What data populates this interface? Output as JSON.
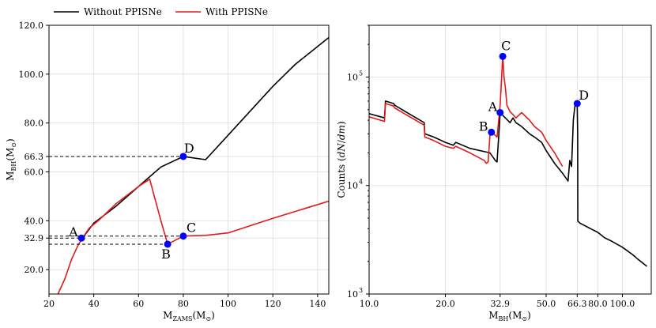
{
  "legend": {
    "without_label": "Without PPISNe",
    "with_label": "With PPISNe",
    "without_color": "#000000",
    "with_color": "#e31a1c"
  },
  "chart_data": [
    {
      "type": "line",
      "id": "left",
      "xlabel": "M_ZAMS(M_⊙)",
      "ylabel": "M_BH(M_⊙)",
      "xlim": [
        20,
        145
      ],
      "ylim": [
        10,
        120
      ],
      "x_ticks": [
        20,
        40,
        60,
        80,
        100,
        120,
        140
      ],
      "x_tick_labels": [
        "20",
        "40",
        "60",
        "80",
        "100",
        "120",
        "140"
      ],
      "y_ticks": [
        20,
        32.9,
        40,
        60,
        66.3,
        80,
        100,
        120
      ],
      "y_tick_labels": [
        "20.0",
        "32.9",
        "40.0",
        "60.0",
        "66.3",
        "80.0",
        "100.0",
        "120.0"
      ],
      "grid": true,
      "series": [
        {
          "name": "Without PPISNe",
          "color": "#000000",
          "x": [
            35,
            40,
            50,
            60,
            65,
            70,
            80,
            90,
            100,
            110,
            120,
            130,
            145
          ],
          "y": [
            32.9,
            39,
            46,
            54,
            58,
            62,
            66.3,
            65,
            75,
            85,
            95,
            104,
            115
          ]
        },
        {
          "name": "With PPISNe",
          "color": "#e31a1c",
          "x": [
            24,
            27,
            30,
            33,
            35,
            38,
            42,
            50,
            60,
            65,
            70,
            73,
            80,
            90,
            100,
            120,
            145
          ],
          "y": [
            10,
            16,
            24,
            30,
            33,
            37,
            40,
            47,
            54,
            57,
            40,
            30.4,
            33.7,
            34,
            35,
            41,
            48
          ]
        }
      ],
      "points": [
        {
          "label": "A",
          "x": 34.5,
          "y": 32.9
        },
        {
          "label": "B",
          "x": 73,
          "y": 30.4
        },
        {
          "label": "C",
          "x": 80,
          "y": 33.7
        },
        {
          "label": "D",
          "x": 80,
          "y": 66.3
        }
      ]
    },
    {
      "type": "line",
      "id": "right",
      "xscale": "log",
      "yscale": "log",
      "xlabel": "M_BH(M_⊙)",
      "ylabel": "Counts (dN/dm)",
      "xlim": [
        10,
        130
      ],
      "ylim": [
        1000,
        300000
      ],
      "x_ticks": [
        10,
        20,
        32.9,
        50,
        66.3,
        80,
        100
      ],
      "x_tick_labels": [
        "10.0",
        "20.0",
        "32.9",
        "50.0",
        "66.3",
        "80.0",
        "100.0"
      ],
      "y_ticks": [
        1000,
        10000,
        100000
      ],
      "y_tick_labels": [
        "10",
        "10",
        "10"
      ],
      "y_tick_exponents": [
        "3",
        "4",
        "5"
      ],
      "grid": true,
      "series": [
        {
          "name": "Without PPISNe",
          "color": "#000000",
          "x": [
            10,
            11.5,
            11.6,
            12.5,
            12.6,
            16.5,
            16.6,
            18,
            20,
            21.5,
            22,
            25,
            30,
            31.5,
            32,
            32.9,
            33.5,
            36,
            37,
            38,
            40,
            43,
            45,
            48,
            50,
            54,
            58,
            61,
            62,
            63,
            64,
            65,
            66,
            66.3,
            66.6,
            66.7,
            68,
            72,
            75,
            80,
            85,
            90,
            100,
            110,
            115,
            125
          ],
          "y": [
            46000,
            42000,
            60000,
            57000,
            55000,
            38000,
            30000,
            28000,
            25000,
            23500,
            25000,
            22000,
            20000,
            17000,
            16500,
            46000,
            45000,
            38000,
            42000,
            38000,
            35000,
            30000,
            28000,
            25000,
            21000,
            16000,
            13000,
            11000,
            17000,
            15000,
            40000,
            55000,
            57000,
            56000,
            30000,
            4700,
            4500,
            4200,
            4000,
            3700,
            3300,
            3100,
            2700,
            2300,
            2100,
            1800
          ]
        },
        {
          "name": "With PPISNe",
          "color": "#e31a1c",
          "x": [
            10,
            11.5,
            11.6,
            12.5,
            12.6,
            16.5,
            16.6,
            18,
            20,
            21.5,
            22,
            25,
            28.5,
            29,
            29.5,
            30,
            31,
            32,
            32.9,
            33.3,
            33.7,
            34.1,
            34.5,
            35,
            36,
            37,
            38,
            40,
            43,
            45,
            48,
            50,
            54,
            58
          ],
          "y": [
            43000,
            39000,
            57000,
            54000,
            52000,
            36000,
            28000,
            26000,
            23000,
            22000,
            23000,
            20000,
            17000,
            16000,
            16500,
            29000,
            30000,
            28000,
            55000,
            90000,
            160000,
            100000,
            80000,
            55000,
            48000,
            45000,
            42000,
            47000,
            40000,
            35000,
            31000,
            26000,
            20000,
            15000
          ]
        }
      ],
      "points": [
        {
          "label": "A",
          "x": 32.9,
          "y": 47000
        },
        {
          "label": "B",
          "x": 30.4,
          "y": 31000
        },
        {
          "label": "C",
          "x": 33.7,
          "y": 155000
        },
        {
          "label": "D",
          "x": 66.3,
          "y": 57000
        }
      ]
    }
  ]
}
